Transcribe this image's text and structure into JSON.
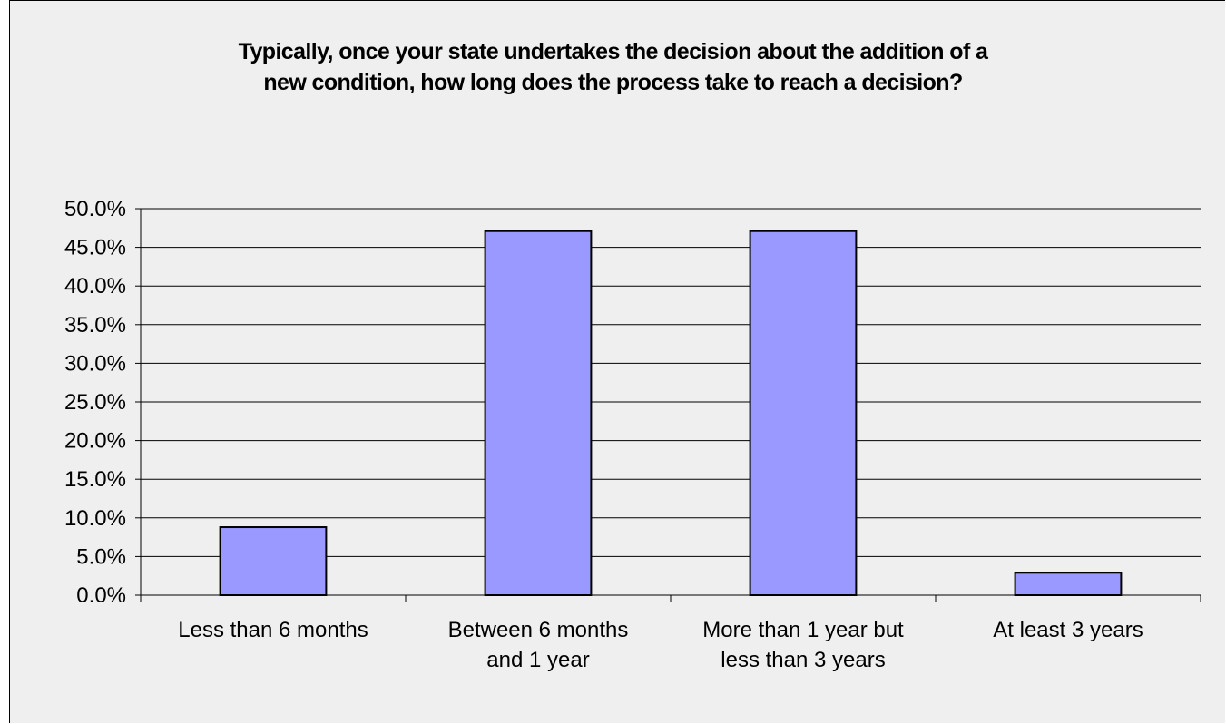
{
  "chart_data": {
    "type": "bar",
    "title": "Typically, once your state undertakes the decision about the addition of a\nnew condition, how long does the process take to reach a decision?",
    "categories": [
      [
        "Less than 6 months"
      ],
      [
        "Between 6 months",
        "and 1 year"
      ],
      [
        "More than 1 year but",
        "less than 3 years"
      ],
      [
        "At least 3 years"
      ]
    ],
    "values": [
      8.8,
      47.1,
      47.1,
      2.9
    ],
    "ylim": [
      0,
      50
    ],
    "yticks": [
      "0.0%",
      "5.0%",
      "10.0%",
      "15.0%",
      "20.0%",
      "25.0%",
      "30.0%",
      "35.0%",
      "40.0%",
      "45.0%",
      "50.0%"
    ],
    "grid": true,
    "colors": {
      "bar_fill": "#9999ff",
      "bar_stroke": "#000000",
      "background": "#efefef"
    }
  }
}
